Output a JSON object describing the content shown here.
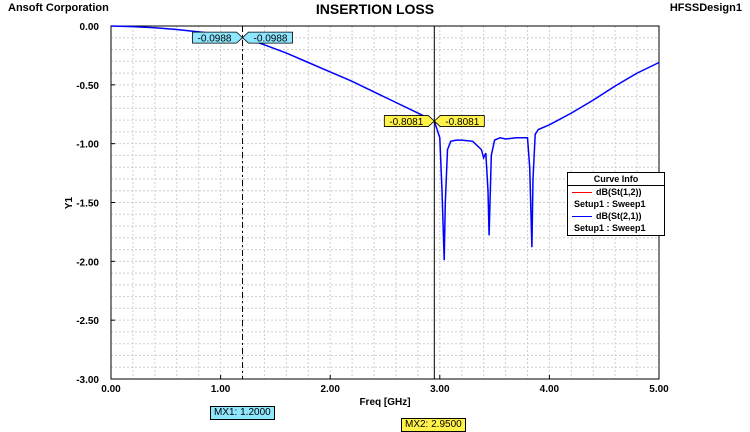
{
  "header": {
    "company": "Ansoft Corporation",
    "title": "INSERTION LOSS",
    "project": "HFSSDesign1"
  },
  "legend": {
    "title": "Curve Info",
    "entries": [
      {
        "name": "dB(St(1,2))",
        "setup": "Setup1 : Sweep1",
        "color": "#ff0000"
      },
      {
        "name": "dB(St(2,1))",
        "setup": "Setup1 : Sweep1",
        "color": "#0000ff"
      }
    ]
  },
  "markers": [
    {
      "id": "MX1",
      "label": "MX1: 1.2000",
      "x": 1.2,
      "y": -0.0988,
      "value_label": "-0.0988",
      "color": "#8ee6ff"
    },
    {
      "id": "MX2",
      "label": "MX2: 2.9500",
      "x": 2.95,
      "y": -0.8081,
      "value_label": "-0.8081",
      "color": "#fff24a"
    }
  ],
  "chart_data": {
    "type": "line",
    "title": "INSERTION LOSS",
    "xlabel": "Freq [GHz]",
    "ylabel": "Y1",
    "xlim": [
      0,
      5
    ],
    "ylim": [
      -3,
      0
    ],
    "xticks": [
      0,
      1,
      2,
      3,
      4,
      5
    ],
    "xtick_labels": [
      "0.00",
      "1.00",
      "2.00",
      "3.00",
      "4.00",
      "5.00"
    ],
    "yticks": [
      0,
      -0.5,
      -1,
      -1.5,
      -2,
      -2.5,
      -3
    ],
    "ytick_labels": [
      "0.00",
      "-0.50",
      "-1.00",
      "-1.50",
      "-2.00",
      "-2.50",
      "-3.00"
    ],
    "grid": true,
    "legend_position": "right",
    "series": [
      {
        "name": "dB(St(2,1))",
        "color": "#0000ff",
        "x": [
          0.0,
          0.2,
          0.4,
          0.6,
          0.8,
          1.0,
          1.2,
          1.4,
          1.6,
          1.8,
          2.0,
          2.2,
          2.4,
          2.6,
          2.8,
          2.95,
          3.0,
          3.02,
          3.04,
          3.05,
          3.07,
          3.1,
          3.15,
          3.2,
          3.3,
          3.38,
          3.4,
          3.42,
          3.44,
          3.45,
          3.47,
          3.5,
          3.55,
          3.6,
          3.7,
          3.75,
          3.8,
          3.82,
          3.84,
          3.85,
          3.87,
          3.9,
          4.0,
          4.2,
          4.4,
          4.6,
          4.8,
          5.0
        ],
        "y": [
          0.0,
          -0.005,
          -0.015,
          -0.03,
          -0.05,
          -0.07,
          -0.0988,
          -0.16,
          -0.23,
          -0.31,
          -0.39,
          -0.47,
          -0.56,
          -0.65,
          -0.74,
          -0.8081,
          -0.95,
          -1.4,
          -1.99,
          -1.5,
          -1.05,
          -0.98,
          -0.97,
          -0.97,
          -0.98,
          -1.05,
          -1.12,
          -1.08,
          -1.4,
          -1.78,
          -1.1,
          -0.97,
          -0.95,
          -0.96,
          -0.95,
          -0.95,
          -0.95,
          -1.2,
          -1.88,
          -1.3,
          -0.92,
          -0.88,
          -0.84,
          -0.74,
          -0.63,
          -0.51,
          -0.4,
          -0.31
        ]
      }
    ]
  }
}
